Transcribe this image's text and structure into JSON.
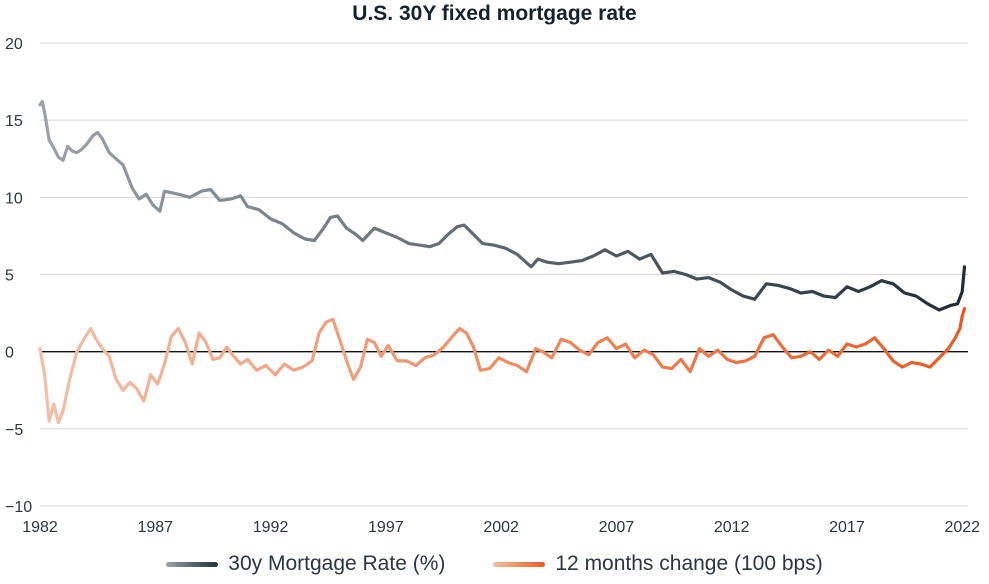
{
  "chart_data": {
    "type": "line",
    "title": "U.S. 30Y fixed mortgage rate",
    "xlabel": "",
    "ylabel": "",
    "xlim": [
      1982,
      2022.25
    ],
    "ylim": [
      -10,
      20
    ],
    "x_ticks": [
      "1982",
      "1987",
      "1992",
      "1997",
      "2002",
      "2007",
      "2012",
      "2017",
      "2022"
    ],
    "y_ticks": [
      "20",
      "15",
      "10",
      "5",
      "0",
      "−5",
      "−10"
    ],
    "grid": true,
    "legend_position": "bottom",
    "series": [
      {
        "name": "30y Mortgage Rate (%)",
        "color_start": "#9aa3a9",
        "color_end": "#1e2d37",
        "x": [
          1982.0,
          1982.1,
          1982.2,
          1982.4,
          1982.6,
          1982.8,
          1983.0,
          1983.2,
          1983.4,
          1983.6,
          1983.8,
          1984.0,
          1984.3,
          1984.5,
          1984.7,
          1985.0,
          1985.3,
          1985.6,
          1986.0,
          1986.3,
          1986.6,
          1986.9,
          1987.2,
          1987.4,
          1987.7,
          1988.0,
          1988.5,
          1989.0,
          1989.4,
          1989.8,
          1990.3,
          1990.7,
          1991.0,
          1991.5,
          1992.0,
          1992.5,
          1993.0,
          1993.5,
          1993.9,
          1994.3,
          1994.6,
          1994.9,
          1995.3,
          1995.7,
          1996.0,
          1996.5,
          1997.0,
          1997.5,
          1998.0,
          1998.5,
          1998.9,
          1999.3,
          1999.7,
          2000.1,
          2000.4,
          2000.8,
          2001.2,
          2001.7,
          2002.2,
          2002.7,
          2003.0,
          2003.3,
          2003.6,
          2004.0,
          2004.5,
          2005.0,
          2005.5,
          2006.0,
          2006.5,
          2007.0,
          2007.5,
          2008.0,
          2008.5,
          2009.0,
          2009.5,
          2010.0,
          2010.5,
          2011.0,
          2011.5,
          2012.0,
          2012.5,
          2013.0,
          2013.5,
          2014.0,
          2014.5,
          2015.0,
          2015.5,
          2016.0,
          2016.5,
          2017.0,
          2017.5,
          2018.0,
          2018.5,
          2019.0,
          2019.5,
          2020.0,
          2020.5,
          2021.0,
          2021.5,
          2021.8,
          2022.0,
          2022.1
        ],
        "y": [
          16.0,
          16.2,
          15.5,
          13.7,
          13.2,
          12.6,
          12.4,
          13.3,
          13.0,
          12.9,
          13.1,
          13.4,
          14.0,
          14.2,
          13.8,
          12.9,
          12.5,
          12.1,
          10.6,
          9.9,
          10.2,
          9.5,
          9.1,
          10.4,
          10.3,
          10.2,
          10.0,
          10.4,
          10.5,
          9.8,
          9.9,
          10.1,
          9.4,
          9.2,
          8.6,
          8.3,
          7.7,
          7.3,
          7.2,
          8.0,
          8.7,
          8.8,
          8.0,
          7.6,
          7.2,
          8.0,
          7.7,
          7.4,
          7.0,
          6.9,
          6.8,
          7.0,
          7.6,
          8.1,
          8.2,
          7.6,
          7.0,
          6.9,
          6.7,
          6.3,
          5.9,
          5.5,
          6.0,
          5.8,
          5.7,
          5.8,
          5.9,
          6.2,
          6.6,
          6.2,
          6.5,
          6.0,
          6.3,
          5.1,
          5.2,
          5.0,
          4.7,
          4.8,
          4.5,
          4.0,
          3.6,
          3.4,
          4.4,
          4.3,
          4.1,
          3.8,
          3.9,
          3.6,
          3.5,
          4.2,
          3.9,
          4.2,
          4.6,
          4.4,
          3.8,
          3.6,
          3.1,
          2.7,
          3.0,
          3.1,
          3.9,
          5.5
        ]
      },
      {
        "name": "12 months change (100 bps)",
        "color_start": "#f3bfa6",
        "color_end": "#e85a24",
        "x": [
          1982.0,
          1982.2,
          1982.4,
          1982.6,
          1982.8,
          1983.0,
          1983.3,
          1983.6,
          1983.9,
          1984.2,
          1984.4,
          1984.7,
          1985.0,
          1985.3,
          1985.6,
          1985.9,
          1986.2,
          1986.5,
          1986.8,
          1987.1,
          1987.4,
          1987.7,
          1988.0,
          1988.3,
          1988.6,
          1988.9,
          1989.2,
          1989.5,
          1989.8,
          1990.1,
          1990.4,
          1990.7,
          1991.0,
          1991.4,
          1991.8,
          1992.2,
          1992.6,
          1993.0,
          1993.4,
          1993.8,
          1994.1,
          1994.4,
          1994.7,
          1995.0,
          1995.3,
          1995.6,
          1995.9,
          1996.2,
          1996.5,
          1996.8,
          1997.1,
          1997.5,
          1997.9,
          1998.3,
          1998.7,
          1999.1,
          1999.5,
          1999.9,
          2000.2,
          2000.5,
          2000.8,
          2001.1,
          2001.5,
          2001.9,
          2002.3,
          2002.7,
          2003.1,
          2003.5,
          2003.8,
          2004.2,
          2004.6,
          2005.0,
          2005.4,
          2005.8,
          2006.2,
          2006.6,
          2007.0,
          2007.4,
          2007.8,
          2008.2,
          2008.6,
          2009.0,
          2009.4,
          2009.8,
          2010.2,
          2010.6,
          2011.0,
          2011.4,
          2011.8,
          2012.2,
          2012.6,
          2013.0,
          2013.4,
          2013.8,
          2014.2,
          2014.6,
          2015.0,
          2015.4,
          2015.8,
          2016.2,
          2016.6,
          2017.0,
          2017.4,
          2017.8,
          2018.2,
          2018.6,
          2019.0,
          2019.4,
          2019.8,
          2020.2,
          2020.6,
          2021.0,
          2021.4,
          2021.7,
          2021.9,
          2022.0,
          2022.1
        ],
        "y": [
          0.2,
          -1.5,
          -4.5,
          -3.4,
          -4.6,
          -3.8,
          -1.7,
          0.0,
          0.8,
          1.5,
          0.9,
          0.2,
          -0.3,
          -1.8,
          -2.5,
          -2.0,
          -2.4,
          -3.2,
          -1.5,
          -2.1,
          -0.8,
          1.0,
          1.5,
          0.6,
          -0.8,
          1.2,
          0.6,
          -0.5,
          -0.4,
          0.3,
          -0.3,
          -0.8,
          -0.5,
          -1.2,
          -0.9,
          -1.5,
          -0.8,
          -1.2,
          -1.0,
          -0.6,
          1.2,
          1.9,
          2.1,
          0.8,
          -0.6,
          -1.8,
          -1.0,
          0.8,
          0.6,
          -0.3,
          0.4,
          -0.6,
          -0.6,
          -0.9,
          -0.4,
          -0.2,
          0.3,
          1.0,
          1.5,
          1.2,
          0.3,
          -1.2,
          -1.1,
          -0.4,
          -0.7,
          -0.9,
          -1.3,
          0.2,
          0.0,
          -0.4,
          0.8,
          0.6,
          0.1,
          -0.2,
          0.6,
          0.9,
          0.2,
          0.5,
          -0.4,
          0.1,
          -0.2,
          -1.0,
          -1.1,
          -0.5,
          -1.3,
          0.2,
          -0.3,
          0.1,
          -0.5,
          -0.7,
          -0.6,
          -0.3,
          0.9,
          1.1,
          0.3,
          -0.4,
          -0.3,
          0.0,
          -0.5,
          0.1,
          -0.3,
          0.5,
          0.3,
          0.5,
          0.9,
          0.2,
          -0.6,
          -1.0,
          -0.7,
          -0.8,
          -1.0,
          -0.4,
          0.2,
          0.9,
          1.5,
          2.3,
          2.8
        ]
      }
    ]
  }
}
